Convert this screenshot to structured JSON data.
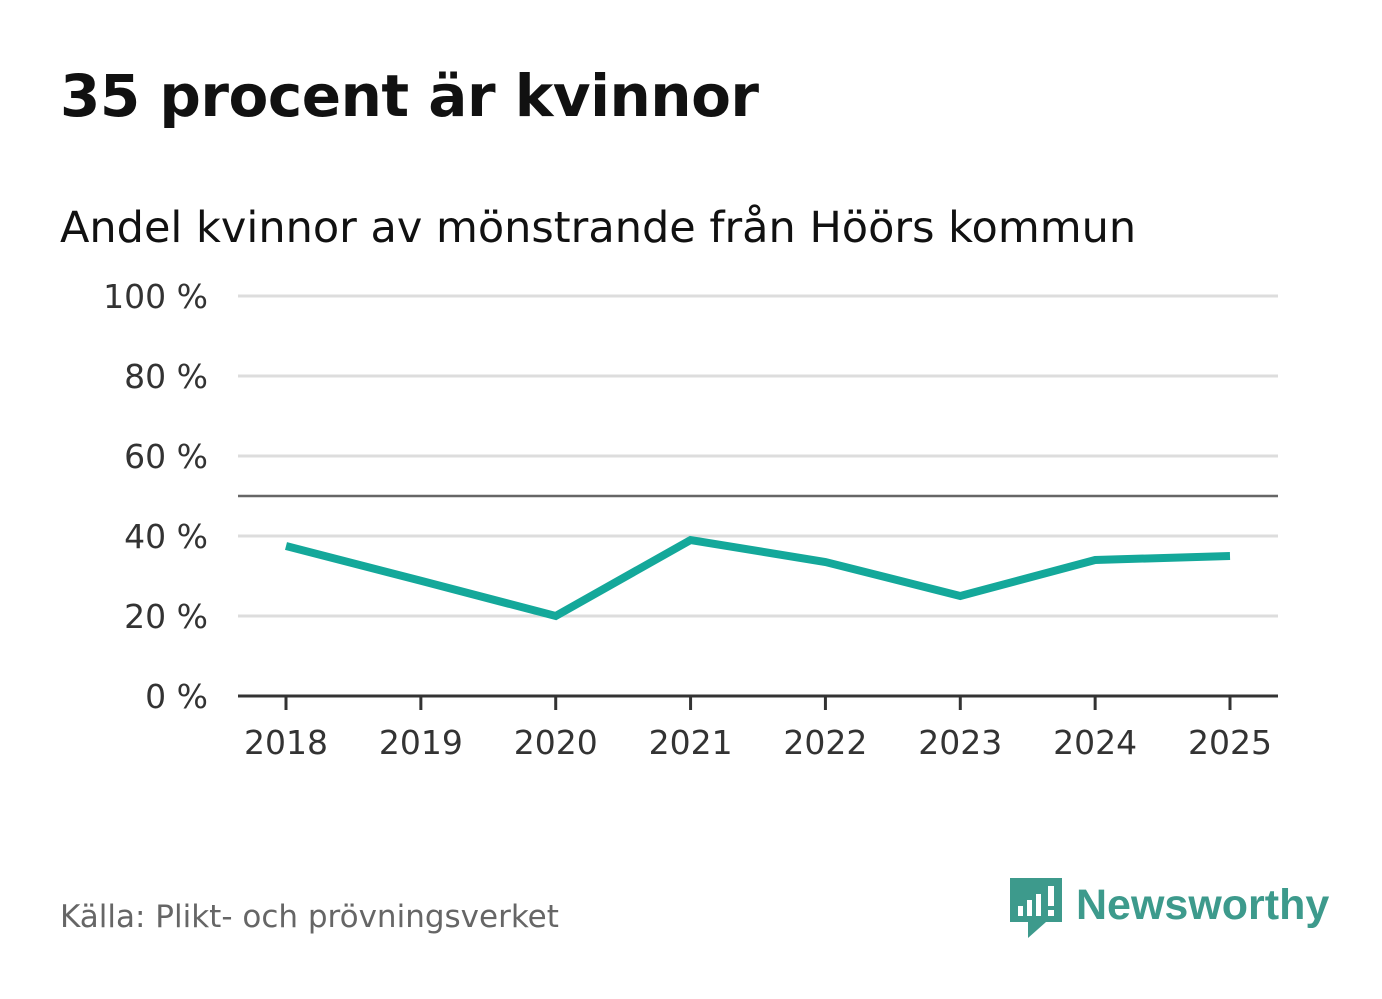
{
  "header": {
    "title": "35 procent är kvinnor",
    "subtitle": "Andel kvinnor av mönstrande från Höörs kommun"
  },
  "footer": {
    "source": "Källa: Plikt- och prövningsverket",
    "brand": "Newsworthy"
  },
  "colors": {
    "line": "#14a89a",
    "grid": "#dddddd",
    "reference_line": "#666666",
    "axis": "#333333",
    "brand": "#3d9a8c"
  },
  "chart_data": {
    "type": "line",
    "x": [
      "2018",
      "2019",
      "2020",
      "2021",
      "2022",
      "2023",
      "2024",
      "2025"
    ],
    "series": [
      {
        "values": [
          37.5,
          28.8,
          20,
          39,
          33.5,
          25,
          34,
          35
        ]
      }
    ],
    "ylim": [
      0,
      100
    ],
    "yticks": [
      0,
      20,
      40,
      60,
      80,
      100
    ],
    "ytick_labels": [
      "0 %",
      "20 %",
      "40 %",
      "60 %",
      "80 %",
      "100 %"
    ],
    "reference_value": 50,
    "grid": true,
    "xlabel": "",
    "ylabel": ""
  }
}
